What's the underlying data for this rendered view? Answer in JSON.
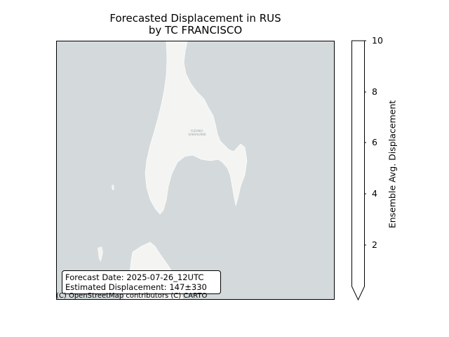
{
  "title": {
    "line1": "Forecasted Displacement in RUS",
    "line2": "by TC FRANCISCO"
  },
  "map": {
    "sea_color": "#d4dadc",
    "land_color": "#f4f5f3",
    "city_labels": [
      "YUZHNO-",
      "SAKHALINSK"
    ],
    "attribution": "(C) OpenStreetMap contributors (C) CARTO"
  },
  "infobox": {
    "forecast_date": "Forecast Date: 2025-07-26_12UTC",
    "estimated_displacement": "Estimated Displacement: 147±330"
  },
  "colorbar": {
    "label": "Ensemble Avg. Displacement",
    "ticks": [
      "2",
      "4",
      "6",
      "8",
      "10"
    ],
    "min": 0,
    "max": 10,
    "extend": "min",
    "color": "#ffffff"
  }
}
